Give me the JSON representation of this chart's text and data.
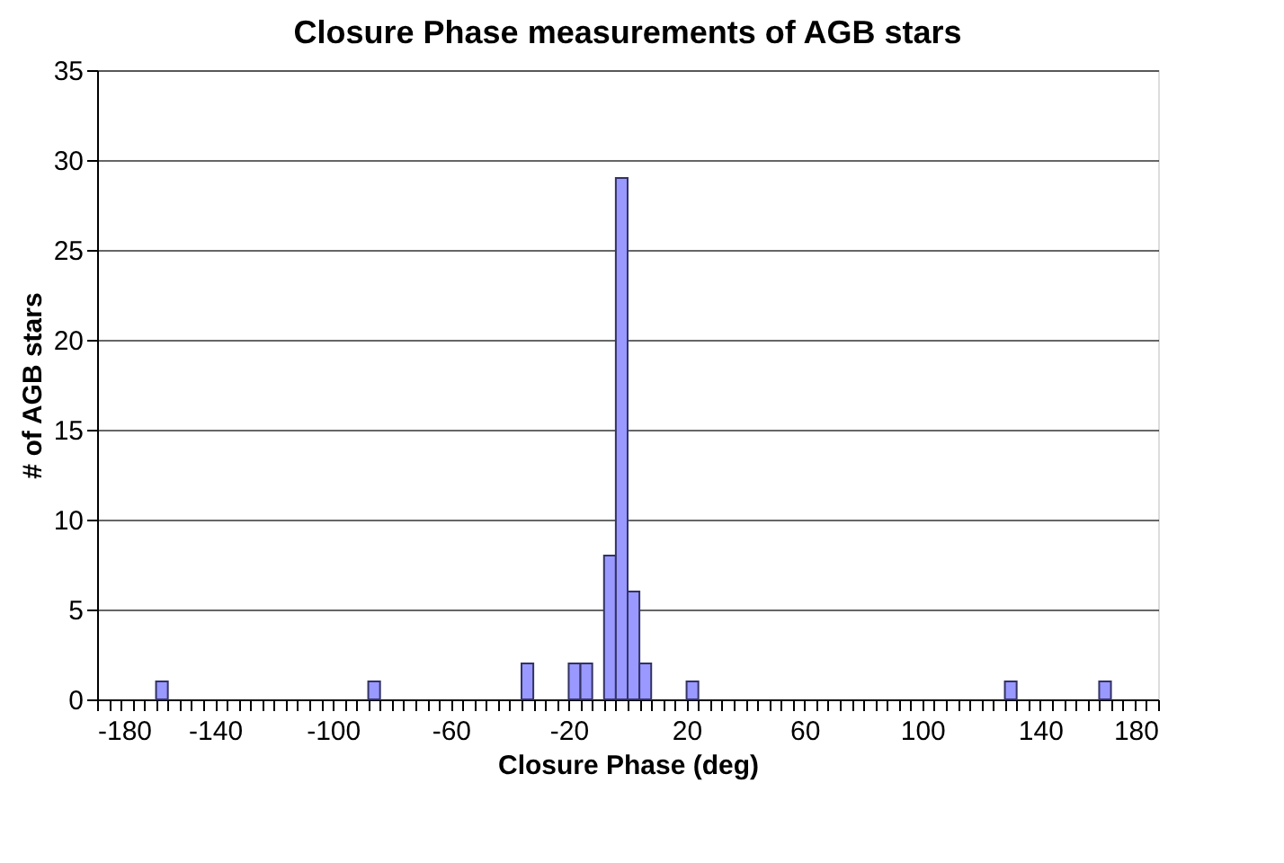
{
  "chart_data": {
    "type": "histogram",
    "title": "Closure Phase measurements of AGB stars",
    "xlabel": "Closure Phase (deg)",
    "ylabel": "# of AGB stars",
    "bins": [
      -180,
      -176,
      -172,
      -168,
      -164,
      -160,
      -156,
      -152,
      -148,
      -144,
      -140,
      -136,
      -132,
      -128,
      -124,
      -120,
      -116,
      -112,
      -108,
      -104,
      -100,
      -96,
      -92,
      -88,
      -84,
      -80,
      -76,
      -72,
      -68,
      -64,
      -60,
      -56,
      -52,
      -48,
      -44,
      -40,
      -36,
      -32,
      -28,
      -24,
      -20,
      -16,
      -12,
      -8,
      -4,
      0,
      4,
      8,
      12,
      16,
      20,
      24,
      28,
      32,
      36,
      40,
      44,
      48,
      52,
      56,
      60,
      64,
      68,
      72,
      76,
      80,
      84,
      88,
      92,
      96,
      100,
      104,
      108,
      112,
      116,
      120,
      124,
      128,
      132,
      136,
      140,
      144,
      148,
      152,
      156,
      160,
      164,
      168,
      172,
      176,
      180
    ],
    "values": [
      0,
      0,
      0,
      0,
      0,
      1,
      0,
      0,
      0,
      0,
      0,
      0,
      0,
      0,
      0,
      0,
      0,
      0,
      0,
      0,
      0,
      0,
      0,
      1,
      0,
      0,
      0,
      0,
      0,
      0,
      0,
      0,
      0,
      0,
      0,
      0,
      2,
      0,
      0,
      0,
      2,
      2,
      0,
      8,
      29,
      6,
      2,
      0,
      0,
      0,
      1,
      0,
      0,
      0,
      0,
      0,
      0,
      0,
      0,
      0,
      0,
      0,
      0,
      0,
      0,
      0,
      0,
      0,
      0,
      0,
      0,
      0,
      0,
      0,
      0,
      0,
      0,
      1,
      0,
      0,
      0,
      0,
      0,
      0,
      0,
      1,
      0,
      0,
      0,
      0
    ],
    "color": "#9999ff",
    "xlim": [
      -180,
      180
    ],
    "xticks": [
      -180,
      {
        "value": -176,
        "label": null
      },
      {
        "value": -172,
        "label": null
      },
      {
        "value": -168,
        "label": null
      },
      {
        "value": -164,
        "label": null
      },
      {
        "value": -160,
        "label": null
      },
      {
        "value": -156,
        "label": null
      },
      {
        "value": -152,
        "label": null
      },
      {
        "value": -148,
        "label": null
      },
      {
        "value": -144,
        "label": null
      },
      -140,
      {
        "value": -136,
        "label": null
      },
      {
        "value": -132,
        "label": null
      },
      {
        "value": -128,
        "label": null
      },
      {
        "value": -124,
        "label": null
      },
      {
        "value": -120,
        "label": null
      },
      {
        "value": -116,
        "label": null
      },
      {
        "value": -112,
        "label": null
      },
      {
        "value": -108,
        "label": null
      },
      {
        "value": -104,
        "label": null
      },
      -100,
      {
        "value": -96,
        "label": null
      },
      {
        "value": -92,
        "label": null
      },
      {
        "value": -88,
        "label": null
      },
      {
        "value": -84,
        "label": null
      },
      {
        "value": -80,
        "label": null
      },
      {
        "value": -76,
        "label": null
      },
      {
        "value": -72,
        "label": null
      },
      {
        "value": -68,
        "label": null
      },
      {
        "value": -64,
        "label": null
      },
      -60,
      {
        "value": -56,
        "label": null
      },
      {
        "value": -52,
        "label": null
      },
      {
        "value": -48,
        "label": null
      },
      {
        "value": -44,
        "label": null
      },
      {
        "value": -40,
        "label": null
      },
      {
        "value": -36,
        "label": null
      },
      {
        "value": -32,
        "label": null
      },
      {
        "value": -28,
        "label": null
      },
      {
        "value": -24,
        "label": null
      },
      -20,
      {
        "value": -16,
        "label": null
      },
      {
        "value": -12,
        "label": null
      },
      {
        "value": -8,
        "label": null
      },
      {
        "value": -4,
        "label": null
      },
      {
        "value": 0,
        "label": null
      },
      {
        "value": 4,
        "label": null
      },
      {
        "value": 8,
        "label": null
      },
      {
        "value": 12,
        "label": null
      },
      {
        "value": 16,
        "label": null
      },
      20,
      {
        "value": 24,
        "label": null
      },
      {
        "value": 28,
        "label": null
      },
      {
        "value": 32,
        "label": null
      },
      {
        "value": 36,
        "label": null
      },
      {
        "value": 40,
        "label": null
      },
      {
        "value": 44,
        "label": null
      },
      {
        "value": 48,
        "label": null
      },
      {
        "value": 52,
        "label": null
      },
      {
        "value": 56,
        "label": null
      },
      60,
      {
        "value": 64,
        "label": null
      },
      {
        "value": 68,
        "label": null
      },
      {
        "value": 72,
        "label": null
      },
      {
        "value": 76,
        "label": null
      },
      {
        "value": 80,
        "label": null
      },
      {
        "value": 84,
        "label": null
      },
      {
        "value": 88,
        "label": null
      },
      {
        "value": 92,
        "label": null
      },
      {
        "value": 96,
        "label": null
      },
      100,
      {
        "value": 104,
        "label": null
      },
      {
        "value": 108,
        "label": null
      },
      {
        "value": 112,
        "label": null
      },
      {
        "value": 116,
        "label": null
      },
      {
        "value": 120,
        "label": null
      },
      {
        "value": 124,
        "label": null
      },
      {
        "value": 128,
        "label": null
      },
      {
        "value": 132,
        "label": null
      },
      {
        "value": 136,
        "label": null
      },
      140,
      {
        "value": 144,
        "label": null
      },
      {
        "value": 148,
        "label": null
      },
      {
        "value": 152,
        "label": null
      },
      {
        "value": 156,
        "label": null
      },
      {
        "value": 160,
        "label": null
      },
      {
        "value": 164,
        "label": null
      },
      {
        "value": 168,
        "label": null
      },
      {
        "value": 172,
        "label": null
      },
      {
        "value": 176,
        "label": null
      },
      180
    ],
    "ylim": [
      0,
      35
    ],
    "yticks": [
      0,
      5,
      10,
      15,
      20,
      25,
      30,
      35
    ],
    "grid": "y"
  }
}
